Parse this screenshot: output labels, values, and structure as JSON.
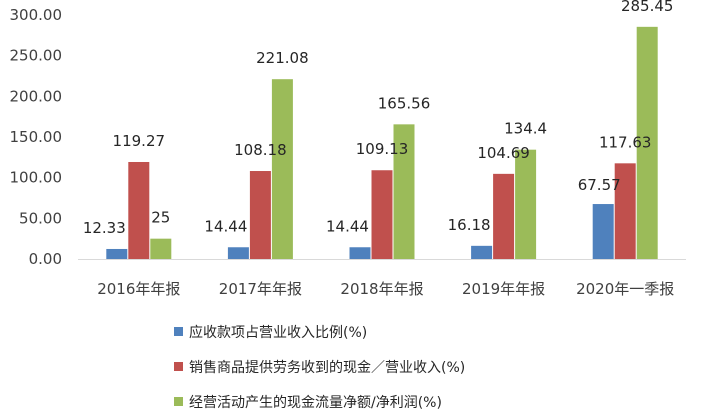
{
  "chart_data": {
    "type": "bar",
    "title": "",
    "xlabel": "",
    "ylabel": "",
    "ylim": [
      0,
      300
    ],
    "yticks": [
      "0.00",
      "50.00",
      "100.00",
      "150.00",
      "200.00",
      "250.00",
      "300.00"
    ],
    "categories": [
      "2016年年报",
      "2017年年报",
      "2018年年报",
      "2019年年报",
      "2020年一季报"
    ],
    "series": [
      {
        "name": "应收款项占营业收入比例(%)",
        "color": "#4f81bd",
        "values": [
          12.33,
          14.44,
          14.44,
          16.18,
          67.57
        ],
        "labels": [
          "12.33",
          "14.44",
          "14.44",
          "16.18",
          "67.57"
        ]
      },
      {
        "name": "销售商品提供劳务收到的现金／营业收入(%)",
        "color": "#c0504d",
        "values": [
          119.27,
          108.18,
          109.13,
          104.69,
          117.63
        ],
        "labels": [
          "119.27",
          "108.18",
          "109.13",
          "104.69",
          "117.63"
        ]
      },
      {
        "name": "经营活动产生的现金流量净额/净利润(%)",
        "color": "#9bbb59",
        "values": [
          25,
          221.08,
          165.56,
          134.4,
          285.45
        ],
        "labels": [
          "25",
          "221.08",
          "165.56",
          "134.4",
          "285.45"
        ]
      }
    ],
    "grid": false,
    "legend_position": "bottom"
  }
}
